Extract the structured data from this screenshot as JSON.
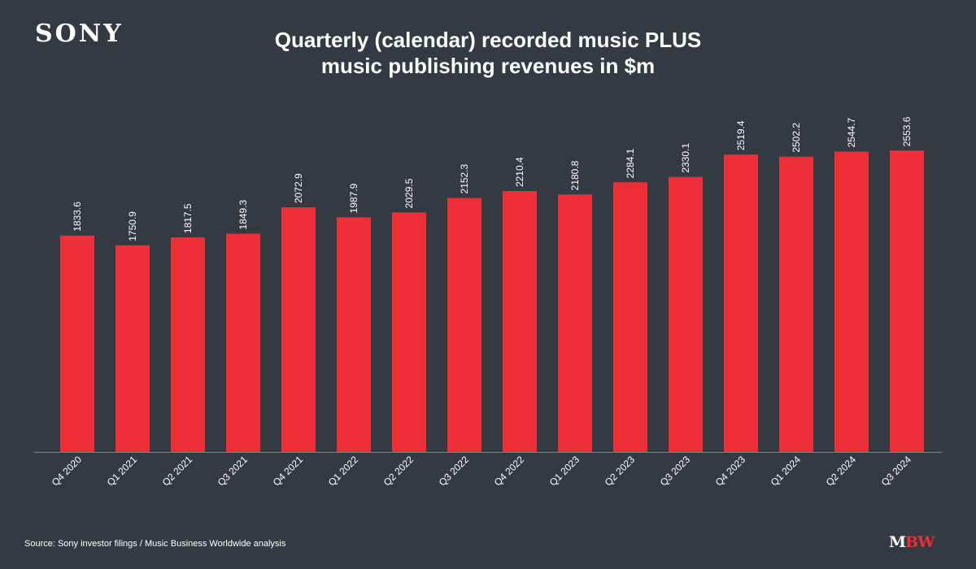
{
  "brand": {
    "logo_text": "SONY"
  },
  "chart_data": {
    "type": "bar",
    "title_lines": [
      "Quarterly (calendar) recorded music PLUS",
      "music publishing revenues in $m"
    ],
    "xlabel": "",
    "ylabel": "",
    "ylim": [
      0,
      2800
    ],
    "grid": false,
    "legend": "none",
    "bar_color": "#ef2f38",
    "background": "#343a42",
    "categories": [
      "Q4 2020",
      "Q1 2021",
      "Q2 2021",
      "Q3 2021",
      "Q4 2021",
      "Q1 2022",
      "Q2 2022",
      "Q3 2022",
      "Q4 2022",
      "Q1 2023",
      "Q2 2023",
      "Q3 2023",
      "Q4 2023",
      "Q1 2024",
      "Q2 2024",
      "Q3 2024"
    ],
    "values": [
      1833.6,
      1750.9,
      1817.5,
      1849.3,
      2072.9,
      1987.9,
      2029.5,
      2152.3,
      2210.4,
      2180.8,
      2284.1,
      2330.1,
      2519.4,
      2502.2,
      2544.7,
      2553.6
    ],
    "data_labels": [
      "1833.6",
      "1750.9",
      "1817.5",
      "1849.3",
      "2072.9",
      "1987.9",
      "2029.5",
      "2152.3",
      "2210.4",
      "2180.8",
      "2284.1",
      "2330.1",
      "2519.4",
      "2502.2",
      "2544.7",
      "2553.6"
    ]
  },
  "footer": {
    "source": "Source: Sony investor filings / Music Business Worldwide analysis",
    "logo_m": "M",
    "logo_bw": "BW"
  }
}
